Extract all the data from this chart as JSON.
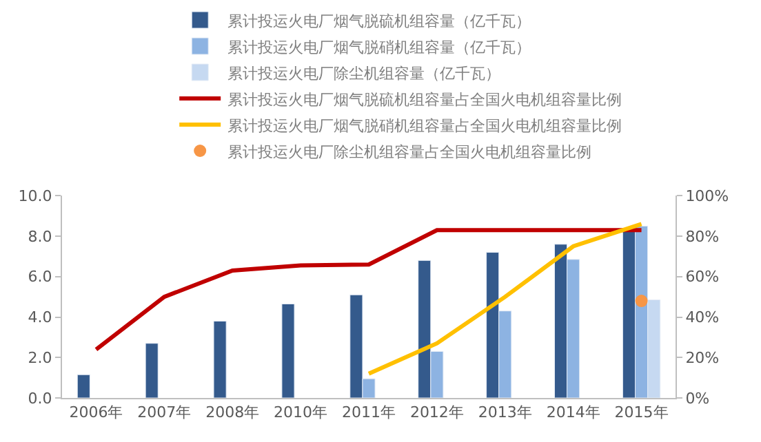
{
  "chart_data": {
    "type": "bar",
    "categories": [
      "2006年",
      "2007年",
      "2008年",
      "2010年",
      "2011年",
      "2012年",
      "2013年",
      "2014年",
      "2015年"
    ],
    "series": [
      {
        "name": "累计投运火电厂烟气脱硫机组容量（亿千瓦）",
        "color": "#345a8c",
        "values": [
          1.15,
          2.7,
          3.8,
          4.65,
          5.1,
          6.8,
          7.2,
          7.6,
          8.4
        ]
      },
      {
        "name": "累计投运火电厂烟气脱硝机组容量（亿千瓦）",
        "color": "#8db3e2",
        "values": [
          null,
          null,
          null,
          null,
          0.95,
          2.3,
          4.3,
          6.85,
          8.5
        ]
      },
      {
        "name": "累计投运火电厂除尘机组容量（亿千瓦）",
        "color": "#c6d9f1",
        "values": [
          null,
          null,
          null,
          null,
          null,
          null,
          null,
          null,
          4.85
        ]
      },
      {
        "name": "累计投运火电厂烟气脱硫机组容量占全国火电机组容量比例",
        "type": "line",
        "axis": "y2",
        "color": "#c00000",
        "marker": "none",
        "values": [
          24,
          50,
          63,
          65.5,
          66,
          83,
          83,
          83,
          83
        ]
      },
      {
        "name": "累计投运火电厂烟气脱硝机组容量占全国火电机组容量比例",
        "type": "line",
        "axis": "y2",
        "color": "#ffc000",
        "marker": "none",
        "values": [
          null,
          null,
          null,
          null,
          12,
          27,
          50,
          75,
          86
        ]
      },
      {
        "name": "累计投运火电厂除尘机组容量占全国火电机组容量比例",
        "type": "scatter",
        "axis": "y2",
        "color": "#f79646",
        "marker": "circle",
        "values": [
          null,
          null,
          null,
          null,
          null,
          null,
          null,
          null,
          48
        ]
      }
    ],
    "ylim": [
      0,
      10
    ],
    "yticks": [
      {
        "value": 0,
        "label": "0.0"
      },
      {
        "value": 2,
        "label": "2.0"
      },
      {
        "value": 4,
        "label": "4.0"
      },
      {
        "value": 6,
        "label": "6.0"
      },
      {
        "value": 8,
        "label": "8.0"
      },
      {
        "value": 10,
        "label": "10.0"
      }
    ],
    "y2lim": [
      0,
      100
    ],
    "y2ticks": [
      {
        "value": 0,
        "label": "0%"
      },
      {
        "value": 20,
        "label": "20%"
      },
      {
        "value": 40,
        "label": "40%"
      },
      {
        "value": 60,
        "label": "60%"
      },
      {
        "value": 80,
        "label": "80%"
      },
      {
        "value": 100,
        "label": "100%"
      }
    ],
    "legend": "top"
  }
}
